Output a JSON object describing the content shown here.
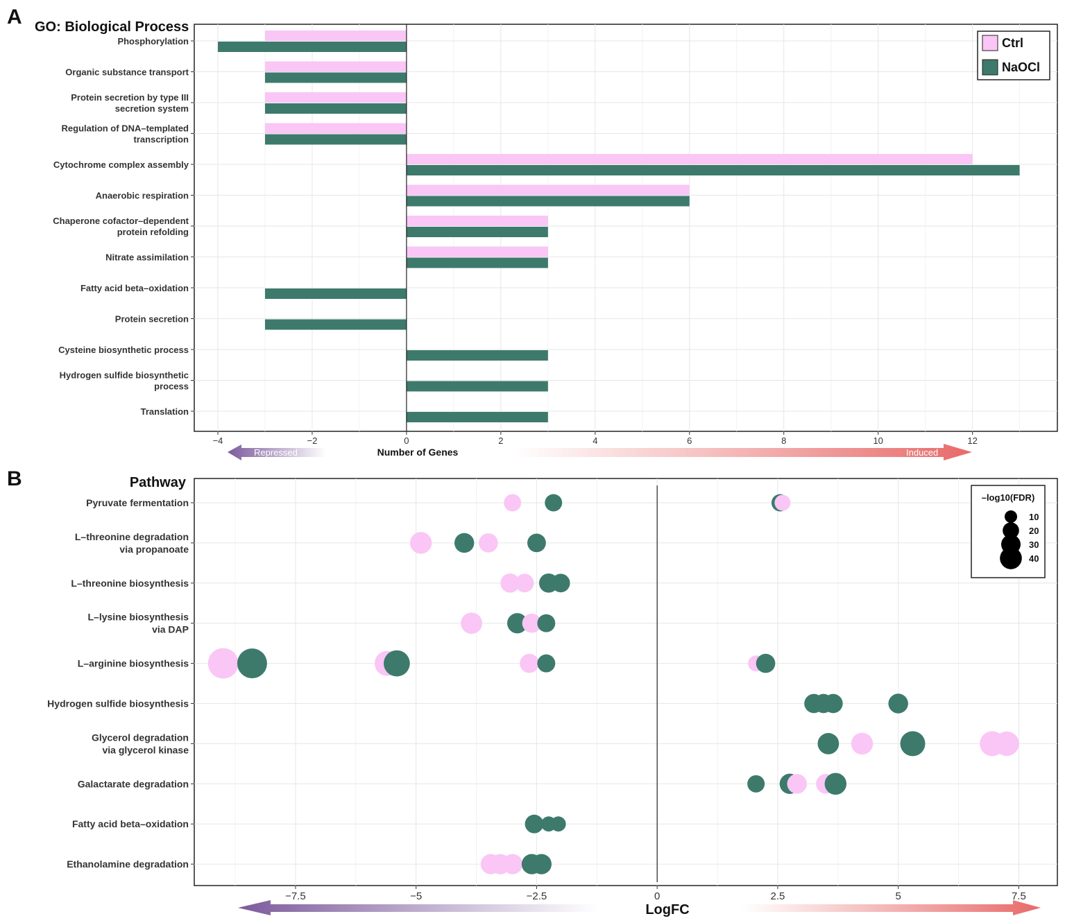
{
  "colors": {
    "ctrl": "#f9c6f6",
    "naocl": "#3d7a6c",
    "repressed": "#7c5a9c",
    "induced": "#e86a6a"
  },
  "panelA": {
    "panel_label": "A",
    "title": "GO: Biological Process",
    "xlabel": "Number of Genes",
    "repressed_label": "Repressed",
    "induced_label": "Induced",
    "legend": {
      "ctrl": "Ctrl",
      "naocl": "NaOCl"
    }
  },
  "panelB": {
    "panel_label": "B",
    "title": "Pathway",
    "xlabel": "LogFC",
    "size_legend": {
      "title": "–log10(FDR)",
      "labels": [
        "10",
        "20",
        "30",
        "40"
      ]
    }
  },
  "chart_data": [
    {
      "type": "bar",
      "orientation": "horizontal",
      "title": "GO: Biological Process",
      "xlabel": "Number of Genes",
      "xlim": [
        -4.5,
        13.8
      ],
      "xticks": [
        -4,
        -2,
        0,
        2,
        4,
        6,
        8,
        10,
        12
      ],
      "xtick_labels": [
        "−4",
        "−2",
        "0",
        "2",
        "4",
        "6",
        "8",
        "10",
        "12"
      ],
      "categories": [
        [
          "Phosphorylation"
        ],
        [
          "Organic substance transport"
        ],
        [
          "Protein secretion by type III",
          "secretion system"
        ],
        [
          "Regulation of DNA–templated",
          "transcription"
        ],
        [
          "Cytochrome complex assembly"
        ],
        [
          "Anaerobic respiration"
        ],
        [
          "Chaperone cofactor–dependent",
          "protein refolding"
        ],
        [
          "Nitrate assimilation"
        ],
        [
          "Fatty acid beta–oxidation"
        ],
        [
          "Protein secretion"
        ],
        [
          "Cysteine biosynthetic process"
        ],
        [
          "Hydrogen sulfide biosynthetic",
          "process"
        ],
        [
          "Translation"
        ]
      ],
      "series": [
        {
          "name": "Ctrl",
          "values": [
            -3,
            -3,
            -3,
            -3,
            12,
            6,
            3,
            3,
            null,
            null,
            null,
            null,
            null
          ]
        },
        {
          "name": "NaOCl",
          "values": [
            -4,
            -3,
            -3,
            -3,
            13,
            6,
            3,
            3,
            -3,
            -3,
            3,
            3,
            3
          ]
        }
      ],
      "legend_position": "top-right"
    },
    {
      "type": "scatter",
      "title": "Pathway",
      "xlabel": "LogFC",
      "xlim": [
        -9.6,
        8.3
      ],
      "xticks": [
        -7.5,
        -5,
        -2.5,
        0,
        2.5,
        5,
        7.5
      ],
      "xtick_labels": [
        "−7.5",
        "−5",
        "−2.5",
        "0",
        "2.5",
        "5",
        "7.5"
      ],
      "size_variable": "-log10(FDR)",
      "categories": [
        [
          "Pyruvate fermentation"
        ],
        [
          "L–threonine degradation",
          "via propanoate"
        ],
        [
          "L–threonine biosynthesis"
        ],
        [
          "L–lysine biosynthesis",
          "via DAP"
        ],
        [
          "L–arginine biosynthesis"
        ],
        [
          "Hydrogen sulfide biosynthesis"
        ],
        [
          "Glycerol degradation",
          "via glycerol kinase"
        ],
        [
          "Galactarate degradation"
        ],
        [
          "Fatty acid beta–oxidation"
        ],
        [
          "Ethanolamine degradation"
        ]
      ],
      "points": [
        {
          "cat": 0,
          "group": "Ctrl",
          "x": -3.0,
          "fdr": 10
        },
        {
          "cat": 0,
          "group": "NaOCl",
          "x": -2.15,
          "fdr": 10
        },
        {
          "cat": 0,
          "group": "Ctrl",
          "x": 2.6,
          "fdr": 8
        },
        {
          "cat": 0,
          "group": "NaOCl",
          "x": 2.55,
          "fdr": 10
        },
        {
          "cat": 1,
          "group": "Ctrl",
          "x": -4.9,
          "fdr": 18
        },
        {
          "cat": 1,
          "group": "NaOCl",
          "x": -4.0,
          "fdr": 14
        },
        {
          "cat": 1,
          "group": "Ctrl",
          "x": -3.5,
          "fdr": 13
        },
        {
          "cat": 1,
          "group": "NaOCl",
          "x": -2.5,
          "fdr": 12
        },
        {
          "cat": 2,
          "group": "Ctrl",
          "x": -3.05,
          "fdr": 13
        },
        {
          "cat": 2,
          "group": "Ctrl",
          "x": -2.75,
          "fdr": 12
        },
        {
          "cat": 2,
          "group": "NaOCl",
          "x": -2.25,
          "fdr": 13
        },
        {
          "cat": 2,
          "group": "NaOCl",
          "x": -2.0,
          "fdr": 12
        },
        {
          "cat": 3,
          "group": "Ctrl",
          "x": -3.85,
          "fdr": 17
        },
        {
          "cat": 3,
          "group": "Ctrl",
          "x": -2.6,
          "fdr": 13
        },
        {
          "cat": 3,
          "group": "NaOCl",
          "x": -2.9,
          "fdr": 15
        },
        {
          "cat": 3,
          "group": "NaOCl",
          "x": -2.3,
          "fdr": 11
        },
        {
          "cat": 4,
          "group": "Ctrl",
          "x": -9.0,
          "fdr": 40
        },
        {
          "cat": 4,
          "group": "NaOCl",
          "x": -8.4,
          "fdr": 38
        },
        {
          "cat": 4,
          "group": "Ctrl",
          "x": -5.6,
          "fdr": 25
        },
        {
          "cat": 4,
          "group": "NaOCl",
          "x": -5.4,
          "fdr": 28
        },
        {
          "cat": 4,
          "group": "Ctrl",
          "x": -2.65,
          "fdr": 13
        },
        {
          "cat": 4,
          "group": "NaOCl",
          "x": -2.3,
          "fdr": 11
        },
        {
          "cat": 4,
          "group": "Ctrl",
          "x": 2.05,
          "fdr": 8
        },
        {
          "cat": 4,
          "group": "NaOCl",
          "x": 2.25,
          "fdr": 13
        },
        {
          "cat": 5,
          "group": "NaOCl",
          "x": 3.25,
          "fdr": 13
        },
        {
          "cat": 5,
          "group": "NaOCl",
          "x": 3.45,
          "fdr": 13
        },
        {
          "cat": 5,
          "group": "NaOCl",
          "x": 3.65,
          "fdr": 13
        },
        {
          "cat": 5,
          "group": "NaOCl",
          "x": 5.0,
          "fdr": 14
        },
        {
          "cat": 6,
          "group": "NaOCl",
          "x": 3.55,
          "fdr": 17
        },
        {
          "cat": 6,
          "group": "Ctrl",
          "x": 4.25,
          "fdr": 18
        },
        {
          "cat": 6,
          "group": "NaOCl",
          "x": 5.3,
          "fdr": 25
        },
        {
          "cat": 6,
          "group": "Ctrl",
          "x": 6.95,
          "fdr": 25
        },
        {
          "cat": 6,
          "group": "Ctrl",
          "x": 7.25,
          "fdr": 24
        },
        {
          "cat": 7,
          "group": "NaOCl",
          "x": 2.05,
          "fdr": 10
        },
        {
          "cat": 7,
          "group": "Ctrl",
          "x": 2.9,
          "fdr": 14
        },
        {
          "cat": 7,
          "group": "NaOCl",
          "x": 2.75,
          "fdr": 15
        },
        {
          "cat": 7,
          "group": "Ctrl",
          "x": 3.5,
          "fdr": 14
        },
        {
          "cat": 7,
          "group": "NaOCl",
          "x": 3.7,
          "fdr": 18
        },
        {
          "cat": 8,
          "group": "NaOCl",
          "x": -2.55,
          "fdr": 12
        },
        {
          "cat": 8,
          "group": "NaOCl",
          "x": -2.25,
          "fdr": 7
        },
        {
          "cat": 8,
          "group": "NaOCl",
          "x": -2.05,
          "fdr": 7
        },
        {
          "cat": 9,
          "group": "Ctrl",
          "x": -3.45,
          "fdr": 15
        },
        {
          "cat": 9,
          "group": "Ctrl",
          "x": -3.25,
          "fdr": 15
        },
        {
          "cat": 9,
          "group": "Ctrl",
          "x": -3.0,
          "fdr": 15
        },
        {
          "cat": 9,
          "group": "NaOCl",
          "x": -2.6,
          "fdr": 15
        },
        {
          "cat": 9,
          "group": "NaOCl",
          "x": -2.4,
          "fdr": 15
        }
      ],
      "size_legend_values": [
        10,
        20,
        30,
        40
      ],
      "legend_position": "top-right"
    }
  ]
}
